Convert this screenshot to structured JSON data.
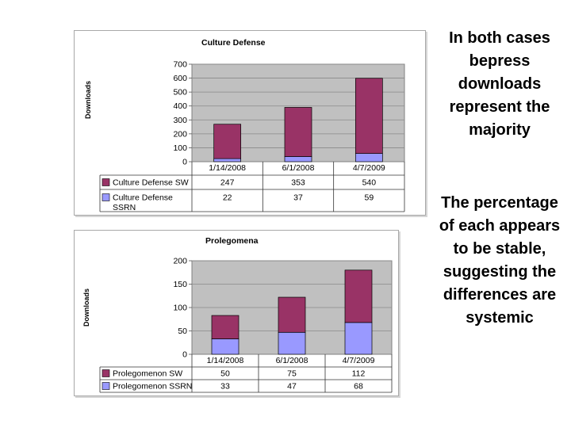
{
  "notes": {
    "first": "In both cases bepress downloads represent the majority",
    "second": "The percentage of each appears to be stable, suggesting the differences are systemic"
  },
  "chart_data": [
    {
      "type": "bar",
      "stacked": true,
      "title": "Culture Defense",
      "ylabel": "Downloads",
      "categories": [
        "1/14/2008",
        "6/1/2008",
        "4/7/2009"
      ],
      "ylim": [
        0,
        700
      ],
      "yticks": [
        0,
        100,
        200,
        300,
        400,
        500,
        600,
        700
      ],
      "legend": "data-table",
      "grid": true,
      "series": [
        {
          "name": "Culture Defense SW",
          "values": [
            247,
            353,
            540
          ],
          "color": "#993366"
        },
        {
          "name": "Culture Defense SSRN",
          "values": [
            22,
            37,
            59
          ],
          "color": "#9999ff"
        }
      ]
    },
    {
      "type": "bar",
      "stacked": true,
      "title": "Prolegomena",
      "ylabel": "Downloads",
      "categories": [
        "1/14/2008",
        "6/1/2008",
        "4/7/2009"
      ],
      "ylim": [
        0,
        200
      ],
      "yticks": [
        0,
        50,
        100,
        150,
        200
      ],
      "legend": "data-table",
      "grid": true,
      "series": [
        {
          "name": "Prolegomenon SW",
          "values": [
            50,
            75,
            112
          ],
          "color": "#993366"
        },
        {
          "name": "Prolegomenon SSRN",
          "values": [
            33,
            47,
            68
          ],
          "color": "#9999ff"
        }
      ]
    }
  ]
}
